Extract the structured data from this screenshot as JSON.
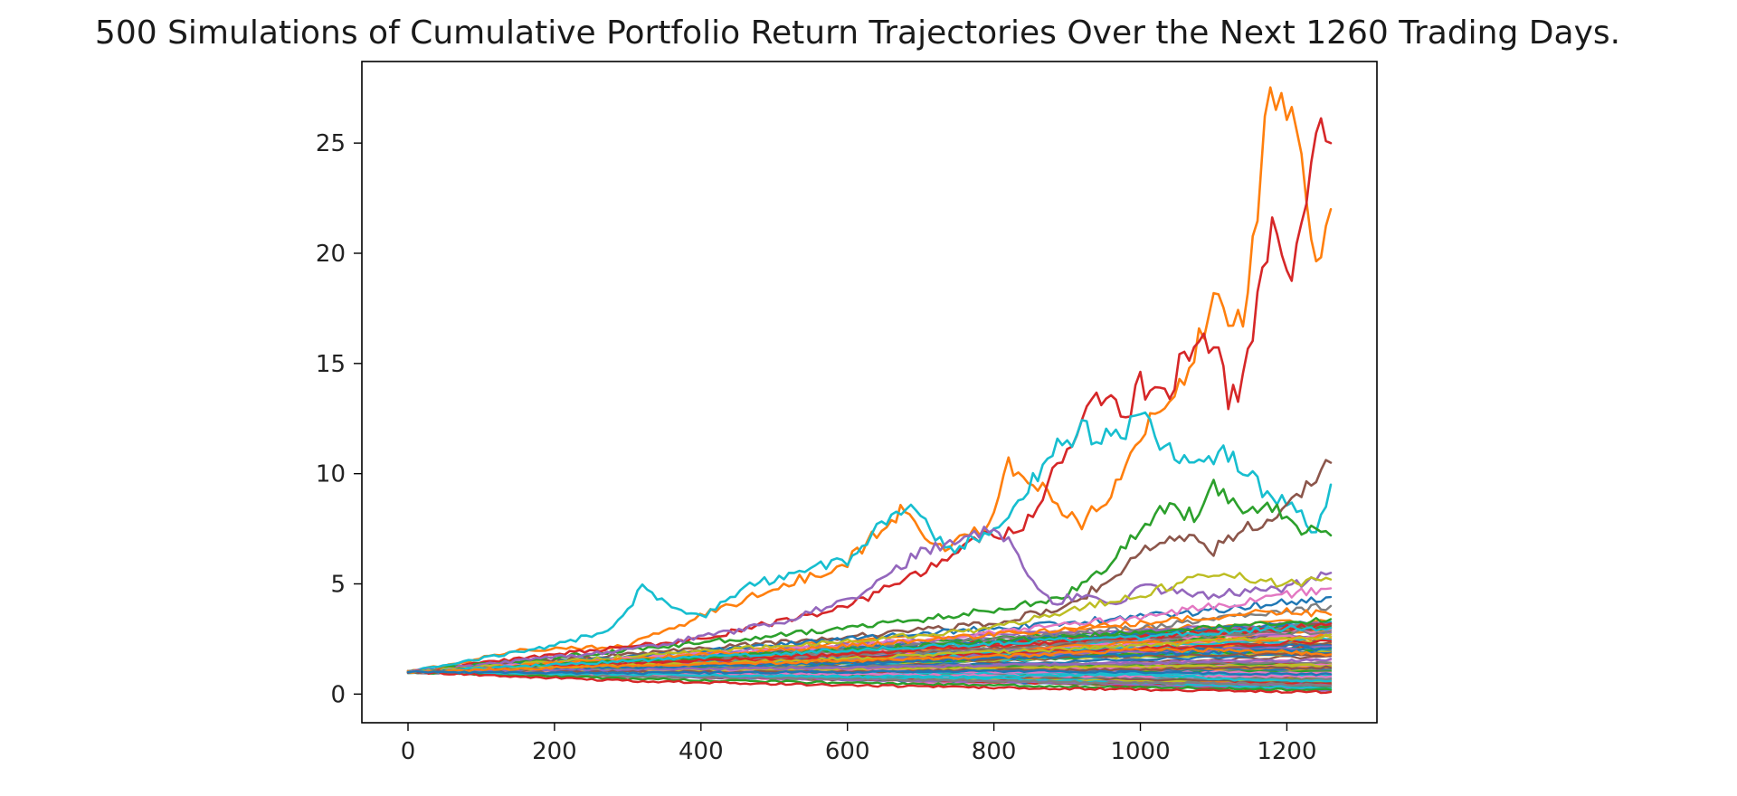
{
  "chart_data": {
    "type": "line",
    "title": "500 Simulations of Cumulative Portfolio Return Trajectories Over the Next 1260 Trading Days.",
    "xlabel": "",
    "ylabel": "",
    "xlim": [
      -63,
      1323
    ],
    "ylim": [
      -1.3,
      28.7
    ],
    "x_ticks": [
      0,
      200,
      400,
      600,
      800,
      1000,
      1200
    ],
    "x_tick_labels": [
      "0",
      "200",
      "400",
      "600",
      "800",
      "1000",
      "1200"
    ],
    "y_ticks": [
      0,
      5,
      10,
      15,
      20,
      25
    ],
    "y_tick_labels": [
      "0",
      "5",
      "10",
      "15",
      "20",
      "25"
    ],
    "grid": false,
    "legend": "none",
    "x_start": 0,
    "x_end": 1260,
    "num_simulations": 500,
    "palette": [
      "#1f77b4",
      "#ff7f0e",
      "#2ca02c",
      "#d62728",
      "#9467bd",
      "#8c564b",
      "#e377c2",
      "#7f7f7f",
      "#bcbd22",
      "#17becf"
    ],
    "series": [
      {
        "color": "#ff7f0e",
        "x": [
          0,
          160,
          300,
          420,
          520,
          600,
          660,
          685,
          720,
          760,
          800,
          820,
          860,
          880,
          920,
          960,
          1000,
          1040,
          1080,
          1100,
          1140,
          1160,
          1170,
          1200,
          1220,
          1240,
          1260
        ],
        "y": [
          1.0,
          2.0,
          2.2,
          3.8,
          5.0,
          6.0,
          8.0,
          8.5,
          6.5,
          7.0,
          8.0,
          10.5,
          9.5,
          8.8,
          7.8,
          9.0,
          12.0,
          13.0,
          16.0,
          17.5,
          17.0,
          22.0,
          27.0,
          26.5,
          24.0,
          20.0,
          22.0
        ]
      },
      {
        "color": "#d62728",
        "x": [
          0,
          200,
          400,
          600,
          700,
          780,
          840,
          900,
          940,
          980,
          1000,
          1040,
          1060,
          1100,
          1120,
          1140,
          1160,
          1180,
          1200,
          1220,
          1240,
          1260
        ],
        "y": [
          1.0,
          1.8,
          2.5,
          4.0,
          5.5,
          7.0,
          7.5,
          11.0,
          13.5,
          12.5,
          14.0,
          13.5,
          15.5,
          16.0,
          13.5,
          14.0,
          17.5,
          21.0,
          18.5,
          21.5,
          26.0,
          25.0
        ]
      },
      {
        "color": "#17becf",
        "x": [
          0,
          200,
          280,
          320,
          360,
          400,
          460,
          520,
          600,
          640,
          680,
          740,
          800,
          840,
          880,
          920,
          960,
          1000,
          1040,
          1080,
          1120,
          1160,
          1200,
          1240,
          1260
        ],
        "y": [
          1.0,
          2.2,
          3.0,
          4.8,
          4.0,
          3.5,
          4.8,
          5.5,
          6.0,
          7.5,
          8.5,
          6.5,
          7.5,
          9.0,
          11.0,
          12.0,
          11.5,
          12.5,
          11.0,
          10.5,
          11.0,
          9.5,
          8.5,
          7.5,
          9.5
        ]
      },
      {
        "color": "#8c564b",
        "x": [
          0,
          300,
          600,
          800,
          900,
          960,
          1000,
          1060,
          1100,
          1140,
          1180,
          1220,
          1260
        ],
        "y": [
          1.0,
          1.8,
          2.6,
          3.2,
          4.0,
          5.2,
          6.5,
          7.2,
          6.5,
          7.5,
          8.0,
          9.0,
          10.5
        ]
      },
      {
        "color": "#2ca02c",
        "x": [
          0,
          300,
          600,
          800,
          900,
          960,
          1000,
          1040,
          1080,
          1100,
          1140,
          1180,
          1220,
          1260
        ],
        "y": [
          1.0,
          2.0,
          3.0,
          3.8,
          4.5,
          6.0,
          7.5,
          8.5,
          8.0,
          9.5,
          8.0,
          8.5,
          7.5,
          7.2
        ]
      },
      {
        "color": "#9467bd",
        "x": [
          0,
          300,
          500,
          600,
          660,
          700,
          760,
          800,
          840,
          860,
          880,
          920,
          960,
          1000,
          1100,
          1200,
          1260
        ],
        "y": [
          1.0,
          2.0,
          3.2,
          4.2,
          5.5,
          6.5,
          7.0,
          7.8,
          6.0,
          4.8,
          4.2,
          4.5,
          4.0,
          4.8,
          4.5,
          4.8,
          5.5
        ]
      },
      {
        "color": "#1f77b4",
        "x": [
          0,
          300,
          600,
          800,
          1000,
          1100,
          1200,
          1260
        ],
        "y": [
          1.0,
          1.7,
          2.5,
          3.0,
          3.5,
          3.8,
          4.2,
          4.4
        ]
      },
      {
        "color": "#bcbd22",
        "x": [
          0,
          300,
          600,
          800,
          1000,
          1100,
          1200,
          1260
        ],
        "y": [
          1.0,
          1.7,
          2.4,
          3.0,
          4.5,
          5.5,
          5.0,
          5.2
        ]
      },
      {
        "color": "#e377c2",
        "x": [
          0,
          300,
          600,
          800,
          1000,
          1100,
          1200,
          1260
        ],
        "y": [
          1.0,
          1.6,
          2.2,
          2.8,
          3.5,
          4.0,
          4.5,
          4.8
        ]
      },
      {
        "color": "#7f7f7f",
        "x": [
          0,
          300,
          600,
          800,
          1000,
          1100,
          1200,
          1260
        ],
        "y": [
          1.0,
          1.5,
          2.0,
          2.5,
          3.0,
          3.4,
          3.8,
          4.0
        ]
      },
      {
        "color": "#ff7f0e",
        "x": [
          0,
          300,
          600,
          800,
          1000,
          1100,
          1200,
          1260
        ],
        "y": [
          1.0,
          1.6,
          2.2,
          2.7,
          3.2,
          3.5,
          3.8,
          3.6
        ]
      },
      {
        "color": "#2ca02c",
        "x": [
          0,
          300,
          600,
          800,
          1000,
          1100,
          1200,
          1260
        ],
        "y": [
          1.0,
          1.5,
          2.0,
          2.4,
          2.8,
          3.0,
          3.2,
          3.4
        ]
      },
      {
        "color": "#d62728",
        "x": [
          0,
          300,
          600,
          800,
          1000,
          1100,
          1200,
          1260
        ],
        "y": [
          1.0,
          1.4,
          1.8,
          2.2,
          2.6,
          2.8,
          3.0,
          3.2
        ]
      },
      {
        "color": "#17becf",
        "x": [
          0,
          300,
          600,
          800,
          1000,
          1100,
          1200,
          1260
        ],
        "y": [
          1.0,
          1.5,
          2.0,
          2.3,
          2.6,
          2.8,
          3.0,
          3.0
        ]
      },
      {
        "color": "#bcbd22",
        "x": [
          0,
          300,
          600,
          800,
          1000,
          1100,
          1200,
          1260
        ],
        "y": [
          1.0,
          1.3,
          1.6,
          1.9,
          2.2,
          2.4,
          2.5,
          2.6
        ]
      },
      {
        "color": "#1f77b4",
        "x": [
          0,
          300,
          600,
          800,
          1000,
          1100,
          1200,
          1260
        ],
        "y": [
          1.0,
          1.2,
          1.4,
          1.6,
          1.8,
          1.9,
          2.0,
          2.1
        ]
      },
      {
        "color": "#9467bd",
        "x": [
          0,
          300,
          600,
          800,
          1000,
          1100,
          1200,
          1260
        ],
        "y": [
          1.0,
          1.1,
          1.2,
          1.3,
          1.4,
          1.5,
          1.5,
          1.6
        ]
      },
      {
        "color": "#8c564b",
        "x": [
          0,
          300,
          600,
          800,
          1000,
          1100,
          1200,
          1260
        ],
        "y": [
          1.0,
          1.0,
          1.0,
          1.1,
          1.1,
          1.2,
          1.2,
          1.2
        ]
      },
      {
        "color": "#e377c2",
        "x": [
          0,
          300,
          600,
          800,
          1000,
          1100,
          1200,
          1260
        ],
        "y": [
          1.0,
          0.9,
          0.9,
          0.85,
          0.8,
          0.8,
          0.8,
          0.8
        ]
      },
      {
        "color": "#7f7f7f",
        "x": [
          0,
          300,
          600,
          800,
          1000,
          1100,
          1200,
          1260
        ],
        "y": [
          1.0,
          0.8,
          0.7,
          0.6,
          0.5,
          0.5,
          0.45,
          0.4
        ]
      },
      {
        "color": "#2ca02c",
        "x": [
          0,
          300,
          600,
          800,
          1000,
          1100,
          1200,
          1260
        ],
        "y": [
          1.0,
          0.7,
          0.5,
          0.4,
          0.3,
          0.25,
          0.2,
          0.2
        ]
      },
      {
        "color": "#17becf",
        "x": [
          0,
          300,
          600,
          800,
          1000,
          1100,
          1200,
          1260
        ],
        "y": [
          1.0,
          0.9,
          0.8,
          0.8,
          0.9,
          0.7,
          0.6,
          0.6
        ]
      },
      {
        "color": "#d62728",
        "x": [
          0,
          300,
          600,
          800,
          1000,
          1100,
          1200,
          1260
        ],
        "y": [
          1.0,
          0.6,
          0.4,
          0.3,
          0.2,
          0.15,
          0.1,
          0.1
        ]
      },
      {
        "color": "#ff7f0e",
        "x": [
          0,
          300,
          600,
          800,
          1000,
          1100,
          1200,
          1260
        ],
        "y": [
          1.0,
          1.3,
          1.5,
          1.7,
          2.0,
          2.0,
          1.9,
          1.8
        ]
      },
      {
        "color": "#1f77b4",
        "x": [
          0,
          300,
          600,
          800,
          1000,
          1100,
          1200,
          1260
        ],
        "y": [
          1.0,
          0.95,
          1.0,
          1.05,
          1.0,
          0.95,
          0.9,
          0.9
        ]
      }
    ]
  }
}
